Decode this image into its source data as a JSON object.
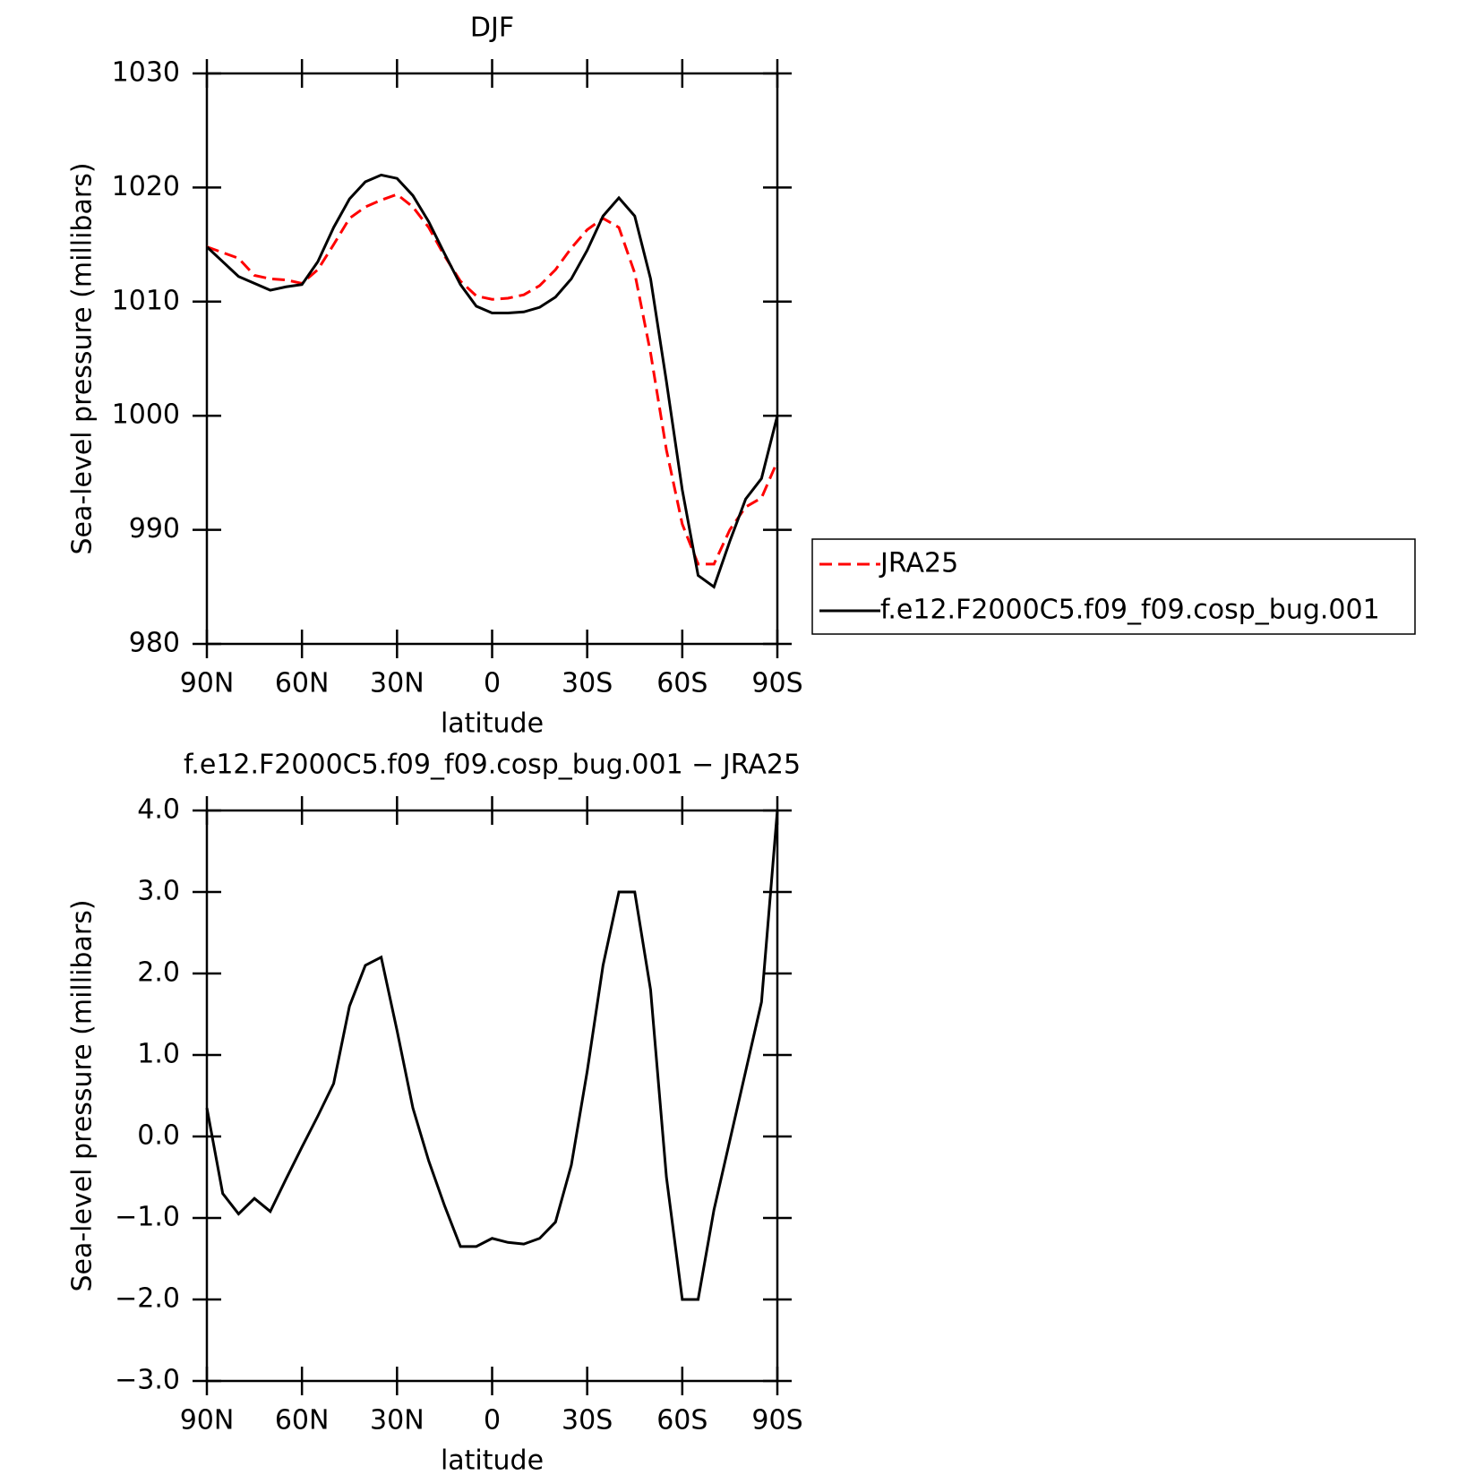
{
  "chart_data": [
    {
      "type": "line",
      "title": "DJF",
      "x_label": "latitude",
      "y_label": "Sea-level pressure (millibars)",
      "x": [
        90,
        85,
        80,
        75,
        70,
        65,
        60,
        55,
        50,
        45,
        40,
        35,
        30,
        25,
        20,
        15,
        10,
        5,
        0,
        -5,
        -10,
        -15,
        -20,
        -25,
        -30,
        -35,
        -40,
        -45,
        -50,
        -55,
        -60,
        -65,
        -70,
        -75,
        -80,
        -85,
        -90
      ],
      "series": [
        {
          "name": "JRA25",
          "color": "#ff0000",
          "style": "dashed",
          "values": [
            1014.8,
            1014.3,
            1013.8,
            1012.3,
            1012.0,
            1011.9,
            1011.6,
            1012.8,
            1015.0,
            1017.3,
            1018.3,
            1018.9,
            1019.4,
            1018.3,
            1016.5,
            1014.0,
            1011.8,
            1010.5,
            1010.2,
            1010.3,
            1010.6,
            1011.4,
            1012.8,
            1014.7,
            1016.3,
            1017.3,
            1016.5,
            1012.5,
            1005.5,
            997.0,
            990.5,
            987.0,
            987.0,
            990.0,
            992.0,
            992.8,
            996.0
          ]
        },
        {
          "name": "f.e12.F2000C5.f09_f09.cosp_bug.001",
          "color": "#000000",
          "style": "solid",
          "values": [
            1014.8,
            1013.5,
            1012.2,
            1011.6,
            1011.0,
            1011.3,
            1011.5,
            1013.5,
            1016.5,
            1019.0,
            1020.5,
            1021.1,
            1020.8,
            1019.3,
            1017.0,
            1014.2,
            1011.5,
            1009.6,
            1009.0,
            1009.0,
            1009.1,
            1009.5,
            1010.4,
            1012.0,
            1014.5,
            1017.5,
            1019.1,
            1017.5,
            1012.0,
            1003.0,
            993.5,
            986.0,
            985.0,
            989.0,
            992.7,
            994.5,
            1000.0
          ]
        }
      ],
      "xlim": [
        90,
        -90
      ],
      "xticks": [
        {
          "value": 90,
          "label": "90N"
        },
        {
          "value": 60,
          "label": "60N"
        },
        {
          "value": 30,
          "label": "30N"
        },
        0,
        {
          "value": -30,
          "label": "30S"
        },
        {
          "value": -60,
          "label": "60S"
        },
        {
          "value": -90,
          "label": "90S"
        }
      ],
      "ylim": [
        980,
        1030
      ],
      "yticks": [
        980,
        990,
        1000,
        1010,
        1020,
        1030
      ],
      "legend": "right"
    },
    {
      "type": "line",
      "title": "f.e12.F2000C5.f09_f09.cosp_bug.001 − JRA25",
      "x_label": "latitude",
      "y_label": "Sea-level pressure (millibars)",
      "x": [
        90,
        85,
        80,
        75,
        70,
        65,
        60,
        55,
        50,
        45,
        40,
        35,
        30,
        25,
        20,
        15,
        10,
        5,
        0,
        -5,
        -10,
        -15,
        -20,
        -25,
        -30,
        -35,
        -40,
        -45,
        -50,
        -55,
        -60,
        -65,
        -70,
        -75,
        -80,
        -85,
        -90
      ],
      "series": [
        {
          "color": "#000000",
          "style": "solid",
          "values": [
            0.35,
            -0.7,
            -0.95,
            -0.76,
            -0.92,
            -0.52,
            -0.13,
            0.25,
            0.65,
            1.6,
            2.1,
            2.2,
            1.3,
            0.35,
            -0.3,
            -0.85,
            -1.35,
            -1.35,
            -1.25,
            -1.3,
            -1.32,
            -1.25,
            -1.05,
            -0.35,
            0.8,
            2.1,
            3.0,
            3.0,
            1.8,
            -0.5,
            -2.0,
            -2.0,
            -0.9,
            -0.05,
            0.8,
            1.65,
            4.0
          ]
        }
      ],
      "xlim": [
        90,
        -90
      ],
      "xticks": [
        {
          "value": 90,
          "label": "90N"
        },
        {
          "value": 60,
          "label": "60N"
        },
        {
          "value": 30,
          "label": "30N"
        },
        0,
        {
          "value": -30,
          "label": "30S"
        },
        {
          "value": -60,
          "label": "60S"
        },
        {
          "value": -90,
          "label": "90S"
        }
      ],
      "ylim": [
        -3,
        4
      ],
      "yticks": [
        {
          "value": -3,
          "label": "−3.0"
        },
        {
          "value": -2,
          "label": "−2.0"
        },
        {
          "value": -1,
          "label": "−1.0"
        },
        {
          "value": 0,
          "label": "0.0"
        },
        {
          "value": 1,
          "label": "1.0"
        },
        {
          "value": 2,
          "label": "2.0"
        },
        {
          "value": 3,
          "label": "3.0"
        },
        {
          "value": 4,
          "label": "4.0"
        }
      ]
    }
  ]
}
